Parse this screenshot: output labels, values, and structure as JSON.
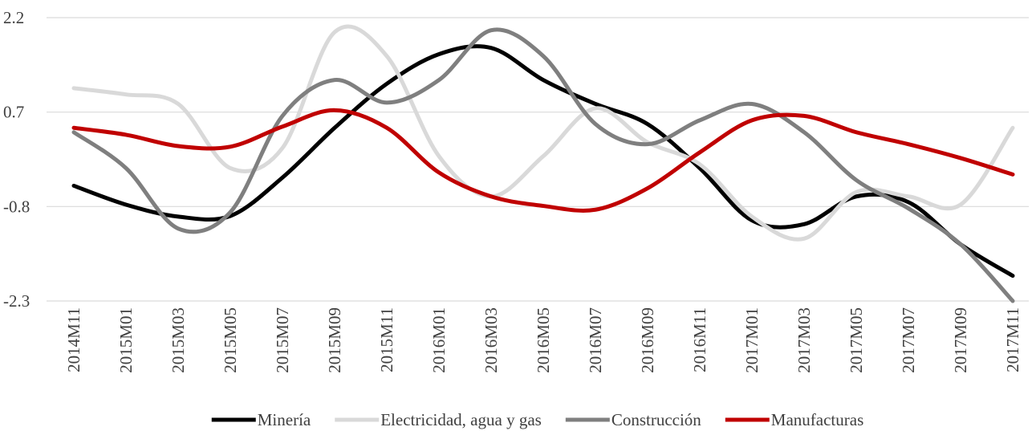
{
  "chart_data": {
    "type": "line",
    "categories": [
      "2014M11",
      "2015M01",
      "2015M03",
      "2015M05",
      "2015M07",
      "2015M09",
      "2015M11",
      "2016M01",
      "2016M03",
      "2016M05",
      "2016M07",
      "2016M09",
      "2016M11",
      "2017M01",
      "2017M03",
      "2017M05",
      "2017M07",
      "2017M09",
      "2017M11"
    ],
    "series": [
      {
        "name": "Minería",
        "color": "#000000",
        "values": [
          -0.47,
          -0.77,
          -0.96,
          -0.95,
          -0.34,
          0.45,
          1.15,
          1.62,
          1.72,
          1.21,
          0.83,
          0.51,
          -0.19,
          -1.02,
          -1.08,
          -0.64,
          -0.73,
          -1.4,
          -1.9
        ]
      },
      {
        "name": "Electricidad, agua y gas",
        "color": "#d9d9d9",
        "values": [
          1.08,
          0.98,
          0.83,
          -0.19,
          0.13,
          1.97,
          1.59,
          0.0,
          -0.64,
          0.0,
          0.76,
          0.22,
          -0.13,
          -0.96,
          -1.31,
          -0.57,
          -0.64,
          -0.77,
          0.45
        ]
      },
      {
        "name": "Construcción",
        "color": "#7f7f7f",
        "values": [
          0.38,
          -0.19,
          -1.15,
          -0.89,
          0.64,
          1.21,
          0.85,
          1.21,
          2.0,
          1.59,
          0.51,
          0.19,
          0.57,
          0.83,
          0.38,
          -0.38,
          -0.83,
          -1.4,
          -2.3
        ]
      },
      {
        "name": "Manufacturas",
        "color": "#c00000",
        "values": [
          0.45,
          0.34,
          0.16,
          0.15,
          0.47,
          0.73,
          0.45,
          -0.26,
          -0.64,
          -0.79,
          -0.85,
          -0.51,
          0.06,
          0.57,
          0.64,
          0.38,
          0.19,
          -0.03,
          -0.29
        ]
      }
    ],
    "ylim": [
      -2.3,
      2.2
    ],
    "yticks": [
      -2.3,
      -0.8,
      0.7,
      2.2
    ],
    "grid": true,
    "legend": "bottom"
  }
}
